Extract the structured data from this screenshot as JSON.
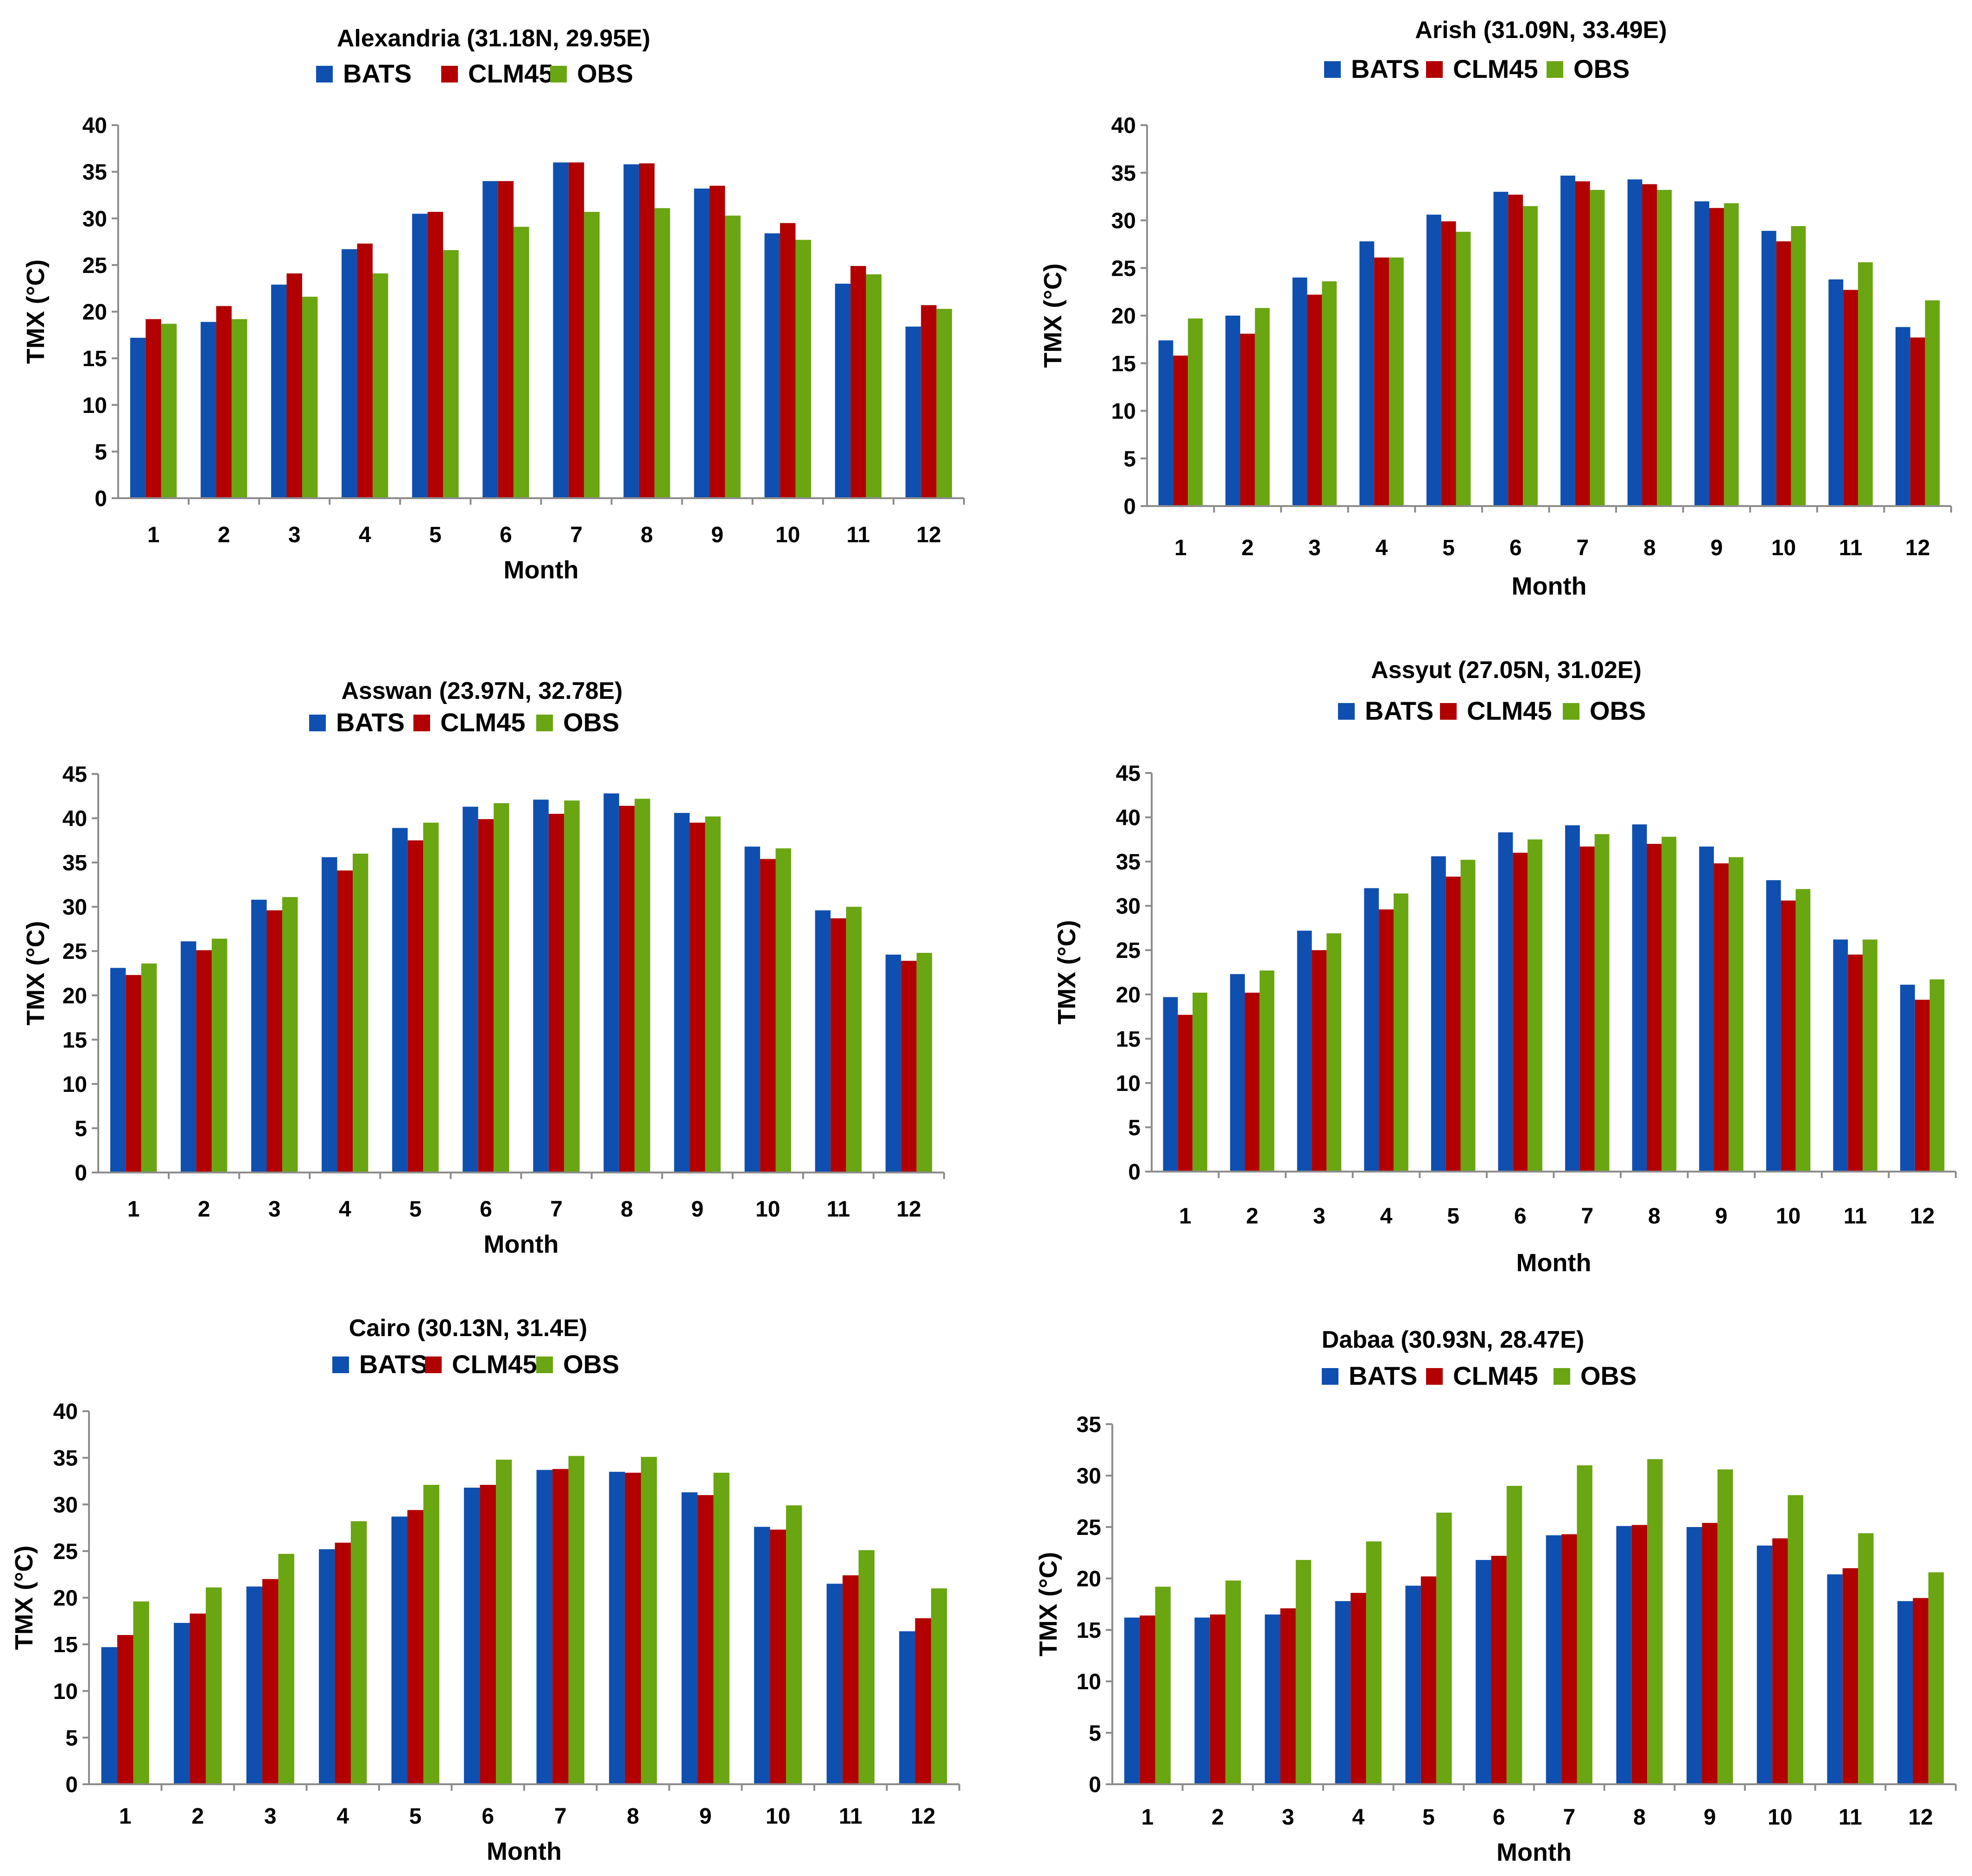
{
  "figure": {
    "series_names": [
      "BATS",
      "CLM45",
      "OBS"
    ],
    "series_colors": [
      "#0f4fb0",
      "#b20000",
      "#6aa512"
    ]
  },
  "chart_data": [
    {
      "type": "bar",
      "title": "Alexandria (31.18N, 29.95E)",
      "xlabel": "Month",
      "ylabel": "TMX (°C)",
      "categories": [
        "1",
        "2",
        "3",
        "4",
        "5",
        "6",
        "7",
        "8",
        "9",
        "10",
        "11",
        "12"
      ],
      "ylim": [
        0,
        40
      ],
      "yticks": [
        0,
        5,
        10,
        15,
        20,
        25,
        30,
        35,
        40
      ],
      "series": [
        {
          "name": "BATS",
          "values": [
            17.2,
            18.9,
            22.9,
            26.7,
            30.5,
            34.0,
            36.0,
            35.8,
            33.2,
            28.4,
            23.0,
            18.4
          ]
        },
        {
          "name": "CLM45",
          "values": [
            19.2,
            20.6,
            24.1,
            27.3,
            30.7,
            34.0,
            36.0,
            35.9,
            33.5,
            29.5,
            24.9,
            20.7
          ]
        },
        {
          "name": "OBS",
          "values": [
            18.7,
            19.2,
            21.6,
            24.1,
            26.6,
            29.1,
            30.7,
            31.1,
            30.3,
            27.7,
            24.0,
            20.3
          ]
        }
      ]
    },
    {
      "type": "bar",
      "title": "Arish (31.09N, 33.49E)",
      "xlabel": "Month",
      "ylabel": "TMX (°C)",
      "categories": [
        "1",
        "2",
        "3",
        "4",
        "5",
        "6",
        "7",
        "8",
        "9",
        "10",
        "11",
        "12"
      ],
      "ylim": [
        0,
        40
      ],
      "yticks": [
        0,
        5,
        10,
        15,
        20,
        25,
        30,
        35,
        40
      ],
      "series": [
        {
          "name": "BATS",
          "values": [
            17.4,
            20.0,
            24.0,
            27.8,
            30.6,
            33.0,
            34.7,
            34.3,
            32.0,
            28.9,
            23.8,
            18.8
          ]
        },
        {
          "name": "CLM45",
          "values": [
            15.8,
            18.1,
            22.2,
            26.1,
            29.9,
            32.7,
            34.1,
            33.8,
            31.3,
            27.8,
            22.7,
            17.7
          ]
        },
        {
          "name": "OBS",
          "values": [
            19.7,
            20.8,
            23.6,
            26.1,
            28.8,
            31.5,
            33.2,
            33.2,
            31.8,
            29.4,
            25.6,
            21.6
          ]
        }
      ]
    },
    {
      "type": "bar",
      "title": "Asswan (23.97N, 32.78E)",
      "xlabel": "Month",
      "ylabel": "TMX (°C)",
      "categories": [
        "1",
        "2",
        "3",
        "4",
        "5",
        "6",
        "7",
        "8",
        "9",
        "10",
        "11",
        "12"
      ],
      "ylim": [
        0,
        45
      ],
      "yticks": [
        0,
        5,
        10,
        15,
        20,
        25,
        30,
        35,
        40,
        45
      ],
      "series": [
        {
          "name": "BATS",
          "values": [
            23.1,
            26.1,
            30.8,
            35.6,
            38.9,
            41.3,
            42.1,
            42.8,
            40.6,
            36.8,
            29.6,
            24.6
          ]
        },
        {
          "name": "CLM45",
          "values": [
            22.3,
            25.1,
            29.6,
            34.1,
            37.5,
            39.9,
            40.5,
            41.4,
            39.5,
            35.4,
            28.7,
            23.9
          ]
        },
        {
          "name": "OBS",
          "values": [
            23.6,
            26.4,
            31.1,
            36.0,
            39.5,
            41.7,
            42.0,
            42.2,
            40.2,
            36.6,
            30.0,
            24.8
          ]
        }
      ]
    },
    {
      "type": "bar",
      "title": "Assyut (27.05N, 31.02E)",
      "xlabel": "Month",
      "ylabel": "TMX (°C)",
      "categories": [
        "1",
        "2",
        "3",
        "4",
        "5",
        "6",
        "7",
        "8",
        "9",
        "10",
        "11",
        "12"
      ],
      "ylim": [
        0,
        45
      ],
      "yticks": [
        0,
        5,
        10,
        15,
        20,
        25,
        30,
        35,
        40,
        45
      ],
      "series": [
        {
          "name": "BATS",
          "values": [
            19.7,
            22.3,
            27.2,
            32.0,
            35.6,
            38.3,
            39.1,
            39.2,
            36.7,
            32.9,
            26.2,
            21.1
          ]
        },
        {
          "name": "CLM45",
          "values": [
            17.7,
            20.2,
            25.0,
            29.6,
            33.3,
            36.0,
            36.7,
            37.0,
            34.8,
            30.6,
            24.5,
            19.4
          ]
        },
        {
          "name": "OBS",
          "values": [
            20.2,
            22.7,
            26.9,
            31.4,
            35.2,
            37.5,
            38.1,
            37.8,
            35.5,
            31.9,
            26.2,
            21.7
          ]
        }
      ]
    },
    {
      "type": "bar",
      "title": "Cairo (30.13N, 31.4E)",
      "xlabel": "Month",
      "ylabel": "TMX (°C)",
      "categories": [
        "1",
        "2",
        "3",
        "4",
        "5",
        "6",
        "7",
        "8",
        "9",
        "10",
        "11",
        "12"
      ],
      "ylim": [
        0,
        40
      ],
      "yticks": [
        0,
        5,
        10,
        15,
        20,
        25,
        30,
        35,
        40
      ],
      "series": [
        {
          "name": "BATS",
          "values": [
            14.7,
            17.3,
            21.2,
            25.2,
            28.7,
            31.8,
            33.7,
            33.5,
            31.3,
            27.6,
            21.5,
            16.4
          ]
        },
        {
          "name": "CLM45",
          "values": [
            16.0,
            18.3,
            22.0,
            25.9,
            29.4,
            32.1,
            33.8,
            33.4,
            31.0,
            27.3,
            22.4,
            17.8
          ]
        },
        {
          "name": "OBS",
          "values": [
            19.6,
            21.1,
            24.7,
            28.2,
            32.1,
            34.8,
            35.2,
            35.1,
            33.4,
            29.9,
            25.1,
            21.0
          ]
        }
      ]
    },
    {
      "type": "bar",
      "title": "Dabaa (30.93N, 28.47E)",
      "xlabel": "Month",
      "ylabel": "TMX (°C)",
      "categories": [
        "1",
        "2",
        "3",
        "4",
        "5",
        "6",
        "7",
        "8",
        "9",
        "10",
        "11",
        "12"
      ],
      "ylim": [
        0,
        35
      ],
      "yticks": [
        0,
        5,
        10,
        15,
        20,
        25,
        30,
        35
      ],
      "series": [
        {
          "name": "BATS",
          "values": [
            16.2,
            16.2,
            16.5,
            17.8,
            19.3,
            21.8,
            24.2,
            25.1,
            25.0,
            23.2,
            20.4,
            17.8
          ]
        },
        {
          "name": "CLM45",
          "values": [
            16.4,
            16.5,
            17.1,
            18.6,
            20.2,
            22.2,
            24.3,
            25.2,
            25.4,
            23.9,
            21.0,
            18.1
          ]
        },
        {
          "name": "OBS",
          "values": [
            19.2,
            19.8,
            21.8,
            23.6,
            26.4,
            29.0,
            31.0,
            31.6,
            30.6,
            28.1,
            24.4,
            20.6
          ]
        }
      ]
    }
  ]
}
